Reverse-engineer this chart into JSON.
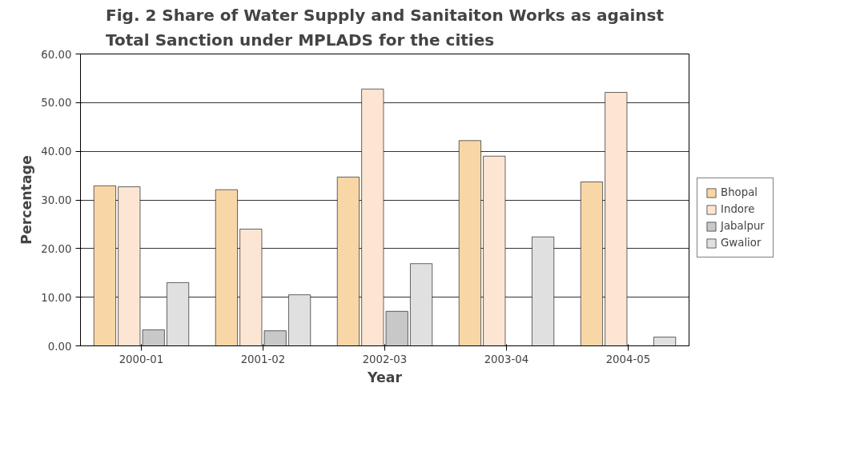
{
  "chart_data": {
    "type": "bar",
    "title": "Fig. 2 Share of Water Supply and Sanitaiton Works as against\nTotal Sanction under MPLADS for the cities",
    "xlabel": "Year",
    "ylabel": "Percentage",
    "categories": [
      "2000-01",
      "2001-02",
      "2002-03",
      "2003-04",
      "2004-05"
    ],
    "series": [
      {
        "name": "Bhopal",
        "color": "#f9d6a5",
        "values": [
          32.9,
          32.1,
          34.7,
          42.2,
          33.7
        ]
      },
      {
        "name": "Indore",
        "color": "#fde5d3",
        "values": [
          32.7,
          24.0,
          52.8,
          39.0,
          52.1
        ]
      },
      {
        "name": "Jabalpur",
        "color": "#c8c8c8",
        "values": [
          3.3,
          3.1,
          7.1,
          null,
          null
        ]
      },
      {
        "name": "Gwalior",
        "color": "#e0e0e0",
        "values": [
          13.0,
          10.5,
          16.9,
          22.4,
          1.8
        ]
      }
    ],
    "ylim": [
      0,
      60
    ],
    "yticks": [
      {
        "value": 0,
        "label": "0.00"
      },
      {
        "value": 10,
        "label": "10.00"
      },
      {
        "value": 20,
        "label": "20.00"
      },
      {
        "value": 30,
        "label": "30.00"
      },
      {
        "value": 40,
        "label": "40.00"
      },
      {
        "value": 50,
        "label": "50.00"
      },
      {
        "value": 60,
        "label": "60.00"
      }
    ],
    "grid": "y",
    "legend": "right"
  }
}
